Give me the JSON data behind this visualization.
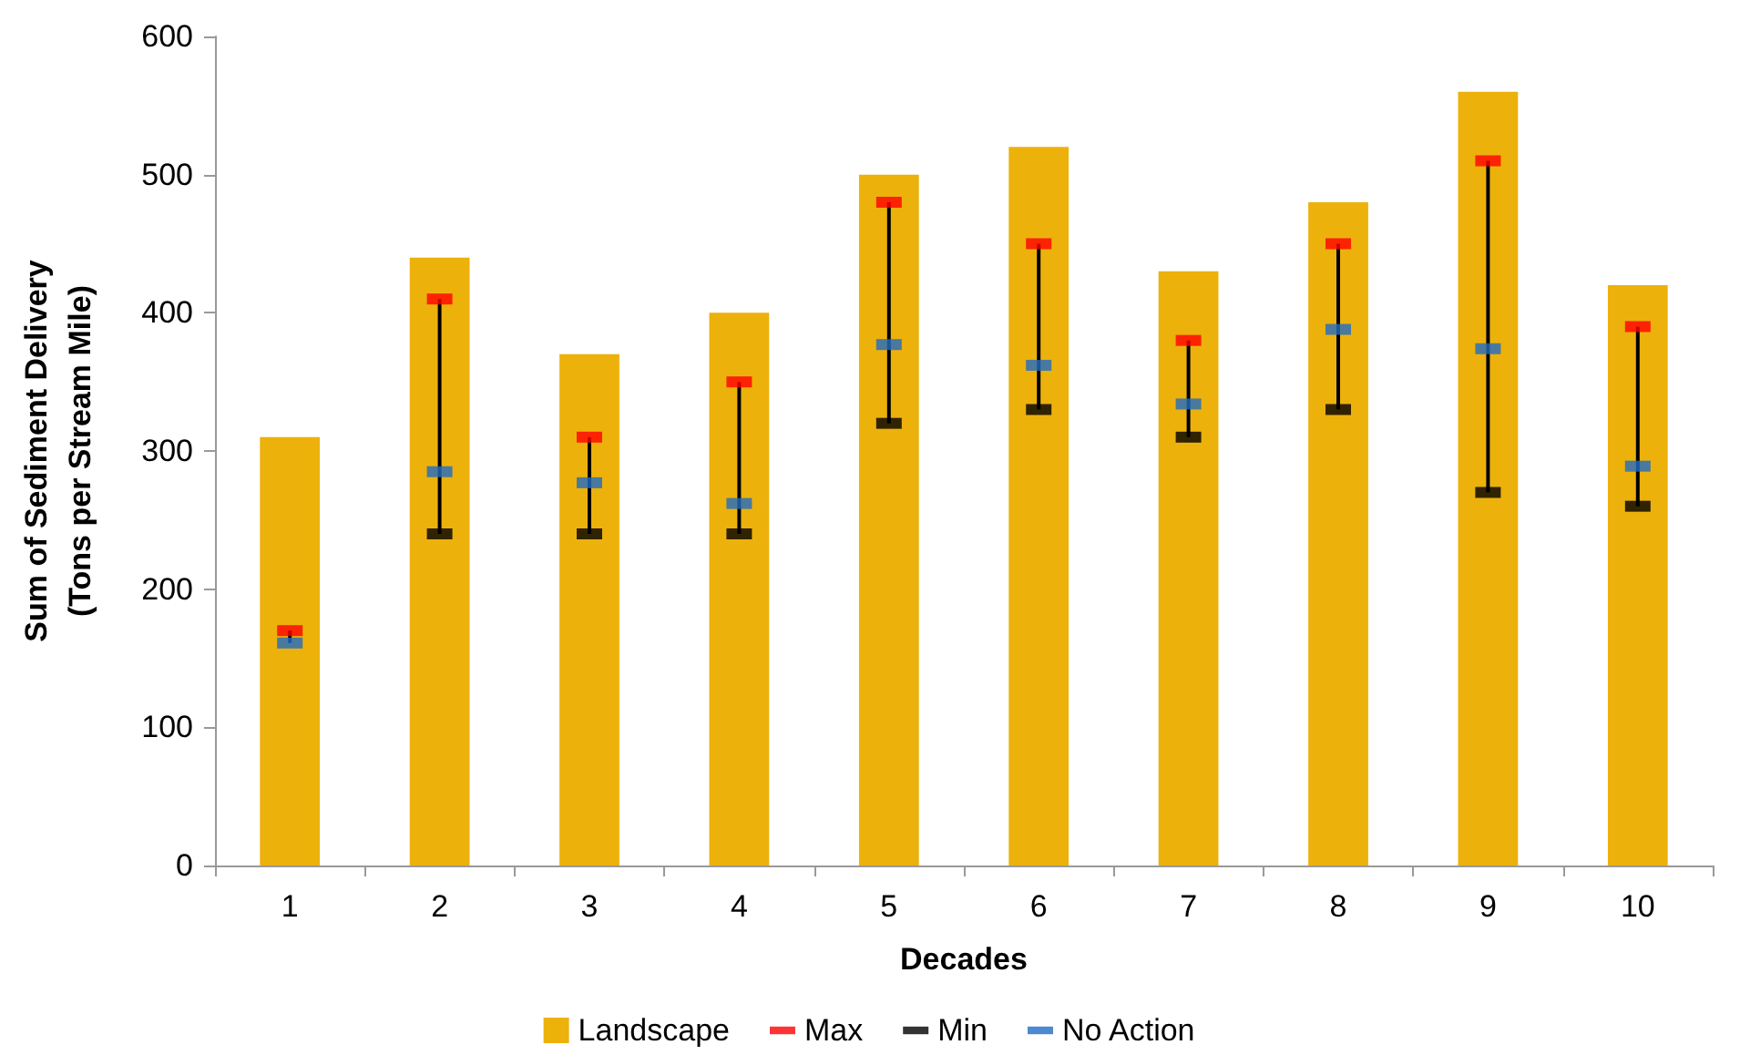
{
  "chart_data": {
    "type": "bar",
    "xlabel": "Decades",
    "ylabel": "Sum of Sediment Delivery\n(Tons per Stream Mile)",
    "categories": [
      "1",
      "2",
      "3",
      "4",
      "5",
      "6",
      "7",
      "8",
      "9",
      "10"
    ],
    "series": [
      {
        "name": "Landscape",
        "type": "bar",
        "color": "#edb10b",
        "values": [
          310,
          440,
          370,
          400,
          500,
          520,
          430,
          480,
          560,
          420
        ]
      },
      {
        "name": "Max",
        "type": "scatter",
        "color": "#ff0000",
        "values": [
          170,
          410,
          310,
          350,
          480,
          450,
          380,
          450,
          510,
          390
        ]
      },
      {
        "name": "Min",
        "type": "scatter",
        "color": "#000000",
        "values": [
          null,
          240,
          240,
          240,
          320,
          330,
          310,
          330,
          270,
          260
        ]
      },
      {
        "name": "No Action",
        "type": "scatter",
        "color": "#1f6cc4",
        "values": [
          161,
          285,
          277,
          262,
          377,
          362,
          334,
          388,
          374,
          289
        ]
      }
    ],
    "ylim": [
      0,
      600
    ],
    "yticks": [
      0,
      100,
      200,
      300,
      400,
      500,
      600
    ],
    "grid": false,
    "legend": "bottom"
  }
}
